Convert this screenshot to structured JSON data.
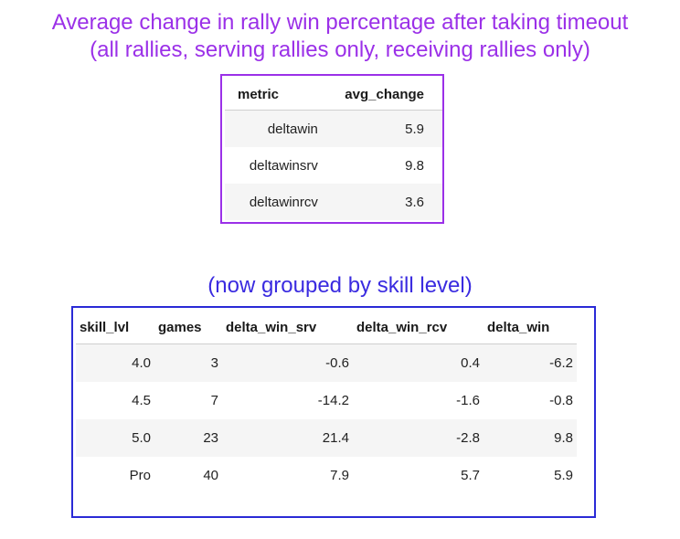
{
  "title": {
    "line1": "Average change in rally win percentage after taking timeout",
    "line2": "(all rallies, serving rallies only, receiving rallies only)"
  },
  "table1": {
    "headers": [
      "metric",
      "avg_change"
    ],
    "rows": [
      [
        "deltawin",
        "5.9"
      ],
      [
        "deltawinsrv",
        "9.8"
      ],
      [
        "deltawinrcv",
        "3.6"
      ]
    ]
  },
  "subtitle": "(now grouped by skill level)",
  "table2": {
    "headers": [
      "skill_lvl",
      "games",
      "delta_win_srv",
      "delta_win_rcv",
      "delta_win"
    ],
    "rows": [
      [
        "4.0",
        "3",
        "-0.6",
        "0.4",
        "-6.2"
      ],
      [
        "4.5",
        "7",
        "-14.2",
        "-1.6",
        "-0.8"
      ],
      [
        "5.0",
        "23",
        "21.4",
        "-2.8",
        "9.8"
      ],
      [
        "Pro",
        "40",
        "7.9",
        "5.7",
        "5.9"
      ]
    ]
  },
  "colors": {
    "title": "#9b30e8",
    "subtitle": "#3a2be0",
    "table1_border": "#9b30e8",
    "table2_border": "#2a2ad6"
  }
}
